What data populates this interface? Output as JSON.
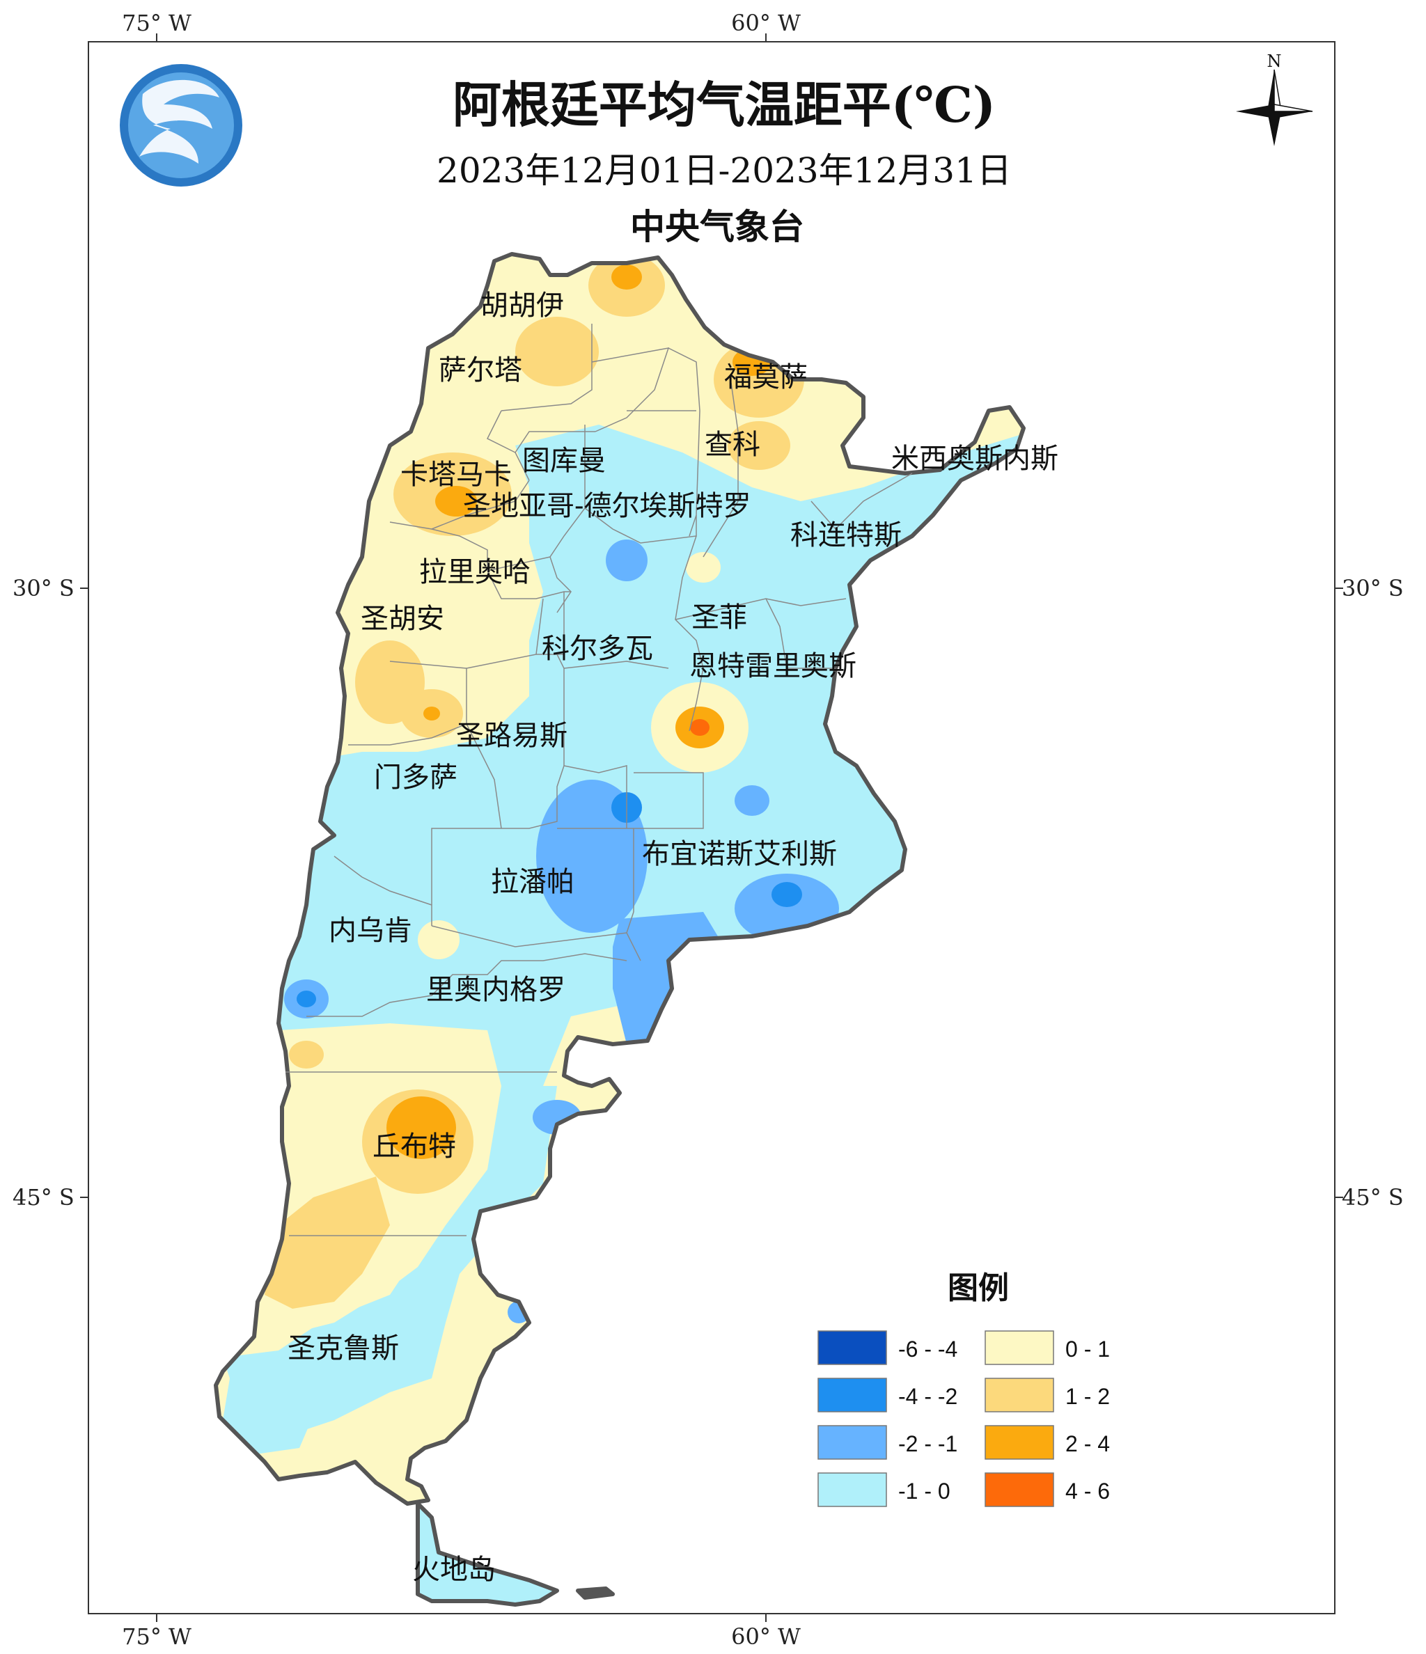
{
  "map": {
    "title": "阿根廷平均气温距平(℃)",
    "date_range": "2023年12月01日-2023年12月31日",
    "agency": "中央气象台",
    "north_label": "N",
    "logo_icon": "cma-logo-icon",
    "top_lon_labels": [
      "75° W",
      "60° W"
    ],
    "bottom_lon_labels": [
      "75° W",
      "60° W"
    ],
    "left_lat_labels": [
      "30° S",
      "45° S"
    ],
    "right_lat_labels": [
      "30° S",
      "45° S"
    ]
  },
  "provinces": [
    "胡胡伊",
    "萨尔塔",
    "福莫萨",
    "查科",
    "图库曼",
    "卡塔马卡",
    "圣地亚哥-德尔埃斯特罗",
    "米西奥斯内斯",
    "科连特斯",
    "拉里奥哈",
    "圣胡安",
    "圣菲",
    "科尔多瓦",
    "恩特雷里奥斯",
    "圣路易斯",
    "门多萨",
    "布宜诺斯艾利斯",
    "拉潘帕",
    "内乌肯",
    "里奥内格罗",
    "丘布特",
    "圣克鲁斯",
    "火地岛"
  ],
  "legend": {
    "title": "图例",
    "items": [
      {
        "label": "-6 - -4",
        "color": "#0a4fbf"
      },
      {
        "label": "-4 - -2",
        "color": "#1e8ff0"
      },
      {
        "label": "-2 - -1",
        "color": "#66b3ff"
      },
      {
        "label": "-1 - 0",
        "color": "#b0f0fa"
      },
      {
        "label": "0 - 1",
        "color": "#fdf8c4"
      },
      {
        "label": "1 - 2",
        "color": "#fcd97c"
      },
      {
        "label": "2 - 4",
        "color": "#fbaa0f"
      },
      {
        "label": "4 - 6",
        "color": "#fd6a0a"
      }
    ]
  }
}
